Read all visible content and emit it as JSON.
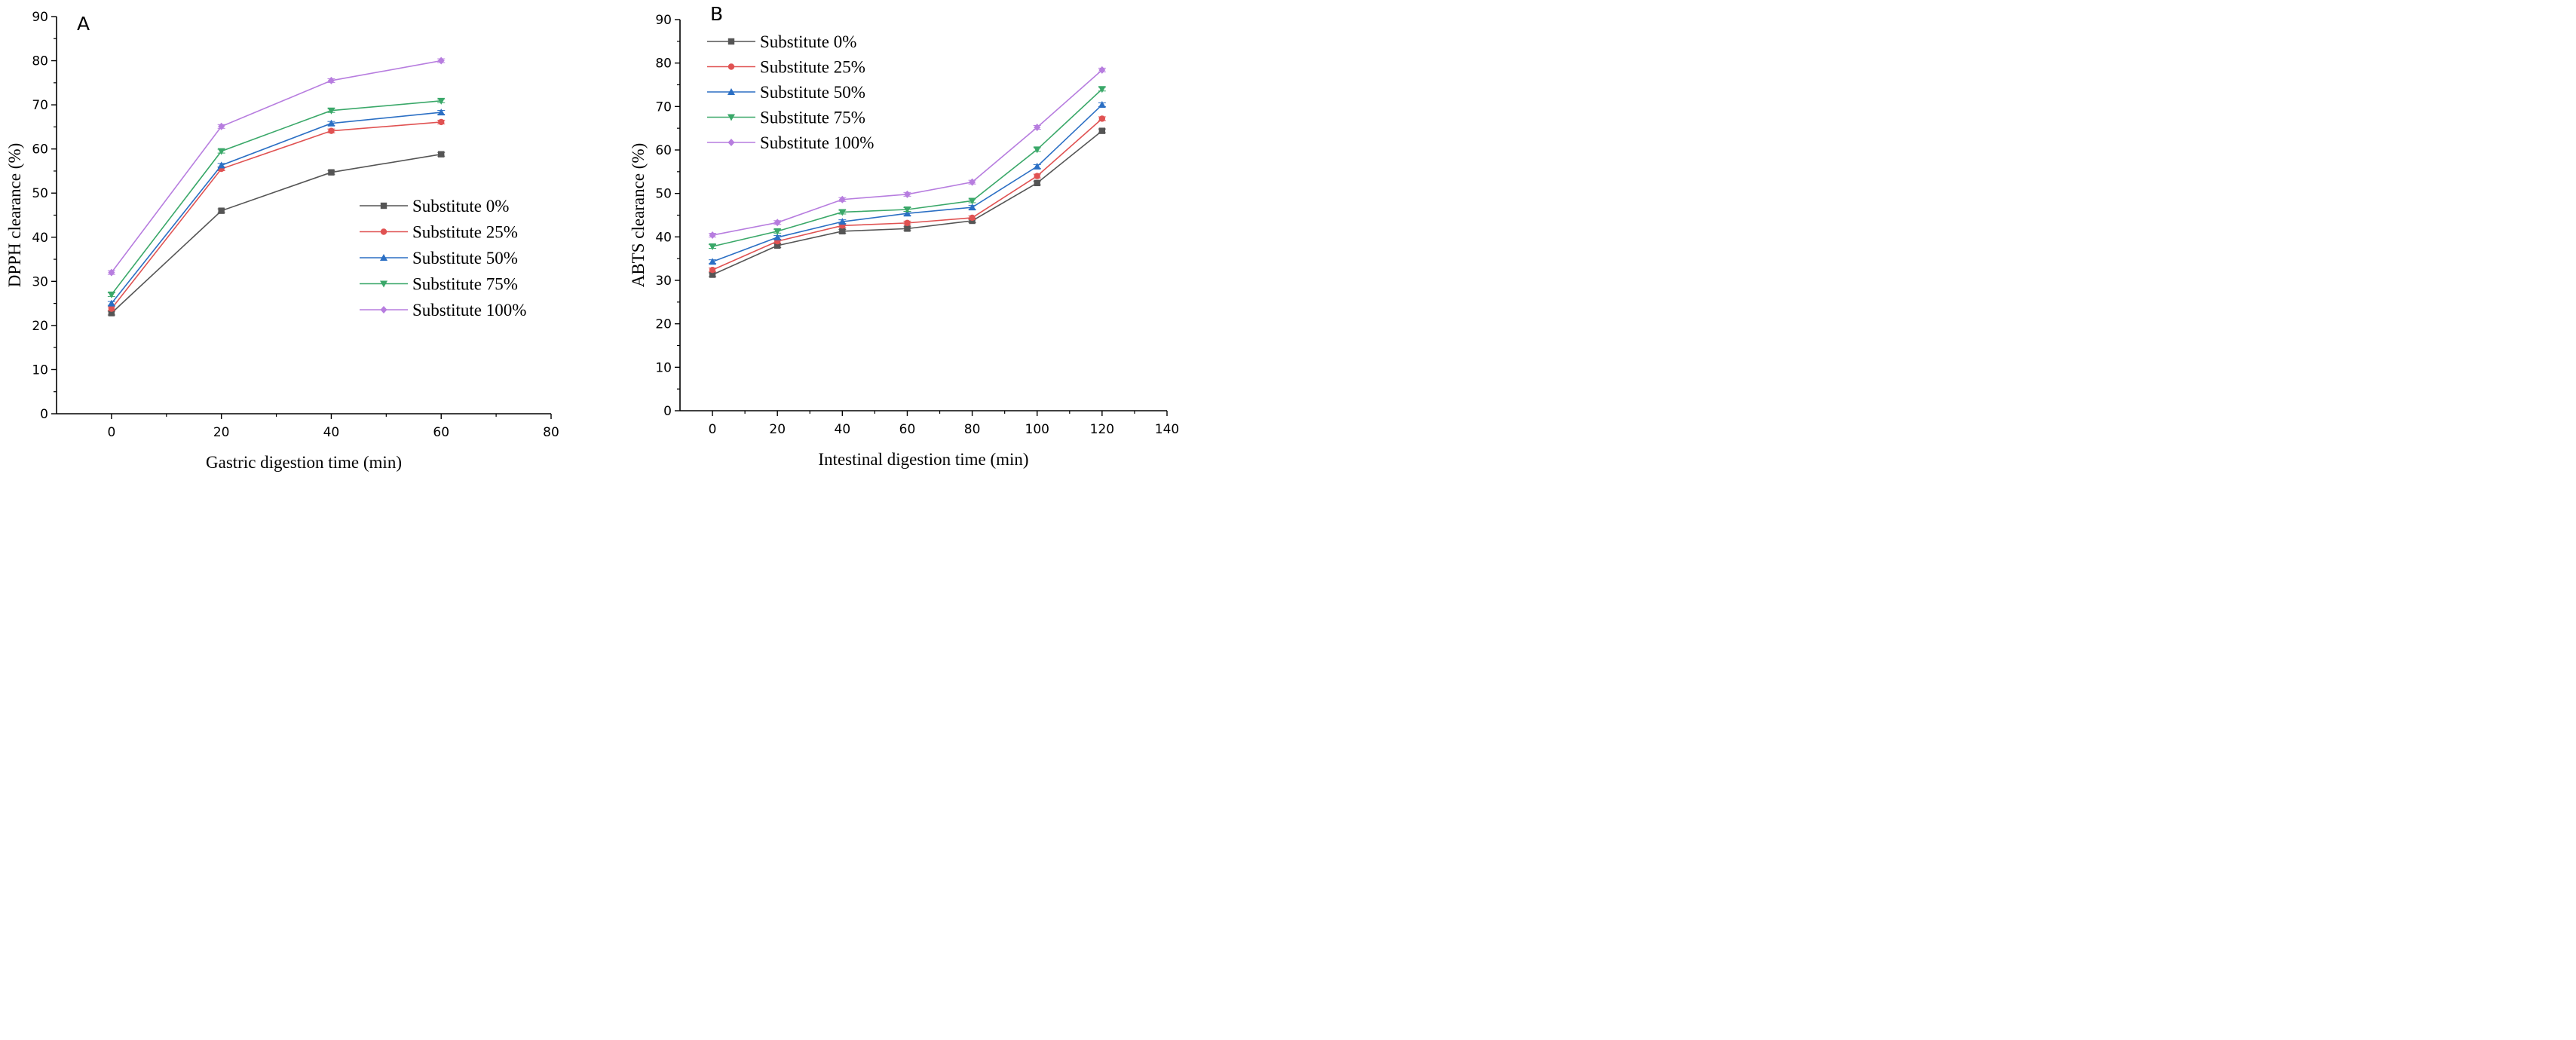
{
  "chart_data": [
    {
      "type": "line",
      "panel_label": "A",
      "title": "",
      "xlabel": "Gastric digestion time (min)",
      "ylabel": "DPPH clearance (%)",
      "xlim": [
        -10,
        80
      ],
      "ylim": [
        0,
        90
      ],
      "xticks": [
        0,
        20,
        40,
        60,
        80
      ],
      "yticks": [
        0,
        10,
        20,
        30,
        40,
        50,
        60,
        70,
        80,
        90
      ],
      "legend_position": "center-right",
      "x": [
        0,
        20,
        40,
        60
      ],
      "series": [
        {
          "name": "Substitute 0%",
          "color": "#555555",
          "marker": "square",
          "values": [
            22.8,
            46.0,
            54.7,
            58.8
          ]
        },
        {
          "name": "Substitute 25%",
          "color": "#e05252",
          "marker": "circle",
          "values": [
            23.8,
            55.5,
            64.1,
            66.1
          ]
        },
        {
          "name": "Substitute 50%",
          "color": "#2b6fc4",
          "marker": "triangle-up",
          "values": [
            25.0,
            56.3,
            65.8,
            68.3
          ]
        },
        {
          "name": "Substitute 75%",
          "color": "#3aa869",
          "marker": "triangle-down",
          "values": [
            27.0,
            59.5,
            68.7,
            70.9
          ]
        },
        {
          "name": "Substitute 100%",
          "color": "#b77ddf",
          "marker": "diamond",
          "values": [
            32.0,
            65.1,
            75.5,
            80.0
          ]
        }
      ]
    },
    {
      "type": "line",
      "panel_label": "B",
      "title": "",
      "xlabel": "Intestinal digestion time (min)",
      "ylabel": "ABTS clearance (%)",
      "xlim": [
        -10,
        140
      ],
      "ylim": [
        0,
        90
      ],
      "xticks": [
        0,
        20,
        40,
        60,
        80,
        100,
        120,
        140
      ],
      "yticks": [
        0,
        10,
        20,
        30,
        40,
        50,
        60,
        70,
        80,
        90
      ],
      "legend_position": "top-left",
      "x": [
        0,
        20,
        40,
        60,
        80,
        100,
        120
      ],
      "series": [
        {
          "name": "Substitute 0%",
          "color": "#555555",
          "marker": "square",
          "values": [
            31.3,
            38.0,
            41.3,
            41.9,
            43.7,
            52.4,
            64.4
          ]
        },
        {
          "name": "Substitute 25%",
          "color": "#e05252",
          "marker": "circle",
          "values": [
            32.4,
            39.0,
            42.6,
            43.2,
            44.4,
            54.0,
            67.2
          ]
        },
        {
          "name": "Substitute 50%",
          "color": "#2b6fc4",
          "marker": "triangle-up",
          "values": [
            34.3,
            39.9,
            43.5,
            45.4,
            46.8,
            56.2,
            70.4
          ]
        },
        {
          "name": "Substitute 75%",
          "color": "#3aa869",
          "marker": "triangle-down",
          "values": [
            37.8,
            41.3,
            45.7,
            46.3,
            48.3,
            60.1,
            74.0
          ]
        },
        {
          "name": "Substitute 100%",
          "color": "#b77ddf",
          "marker": "diamond",
          "values": [
            40.4,
            43.3,
            48.6,
            49.8,
            52.6,
            65.2,
            78.4
          ]
        }
      ]
    }
  ]
}
